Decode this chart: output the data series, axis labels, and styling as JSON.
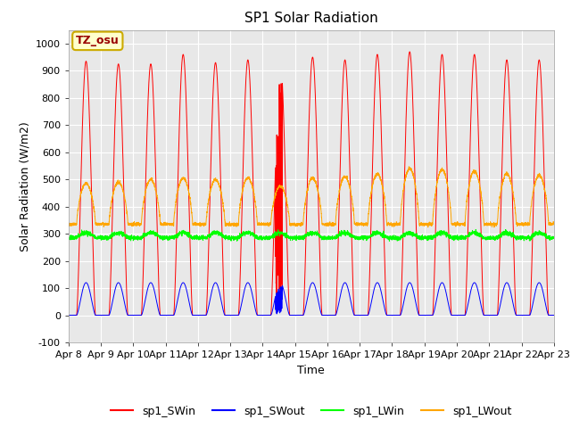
{
  "title": "SP1 Solar Radiation",
  "ylabel": "Solar Radiation (W/m2)",
  "xlabel": "Time",
  "ylim": [
    -100,
    1050
  ],
  "xlim": [
    0,
    15
  ],
  "xtick_labels": [
    "Apr 8",
    "Apr 9",
    "Apr 10",
    "Apr 11",
    "Apr 12",
    "Apr 13",
    "Apr 14",
    "Apr 15",
    "Apr 16",
    "Apr 17",
    "Apr 18",
    "Apr 19",
    "Apr 20",
    "Apr 21",
    "Apr 22",
    "Apr 23"
  ],
  "ytick_labels": [
    -100,
    0,
    100,
    200,
    300,
    400,
    500,
    600,
    700,
    800,
    900,
    1000
  ],
  "fig_bg_color": "#ffffff",
  "plot_bg_color": "#e8e8e8",
  "grid_color": "#ffffff",
  "legend_labels": [
    "sp1_SWin",
    "sp1_SWout",
    "sp1_LWin",
    "sp1_LWout"
  ],
  "legend_colors": [
    "red",
    "blue",
    "lime",
    "orange"
  ],
  "annotation_text": "TZ_osu",
  "annotation_bg": "#ffffcc",
  "annotation_border": "#ccaa00",
  "title_fontsize": 11,
  "axis_label_fontsize": 9,
  "tick_fontsize": 8,
  "legend_fontsize": 9
}
